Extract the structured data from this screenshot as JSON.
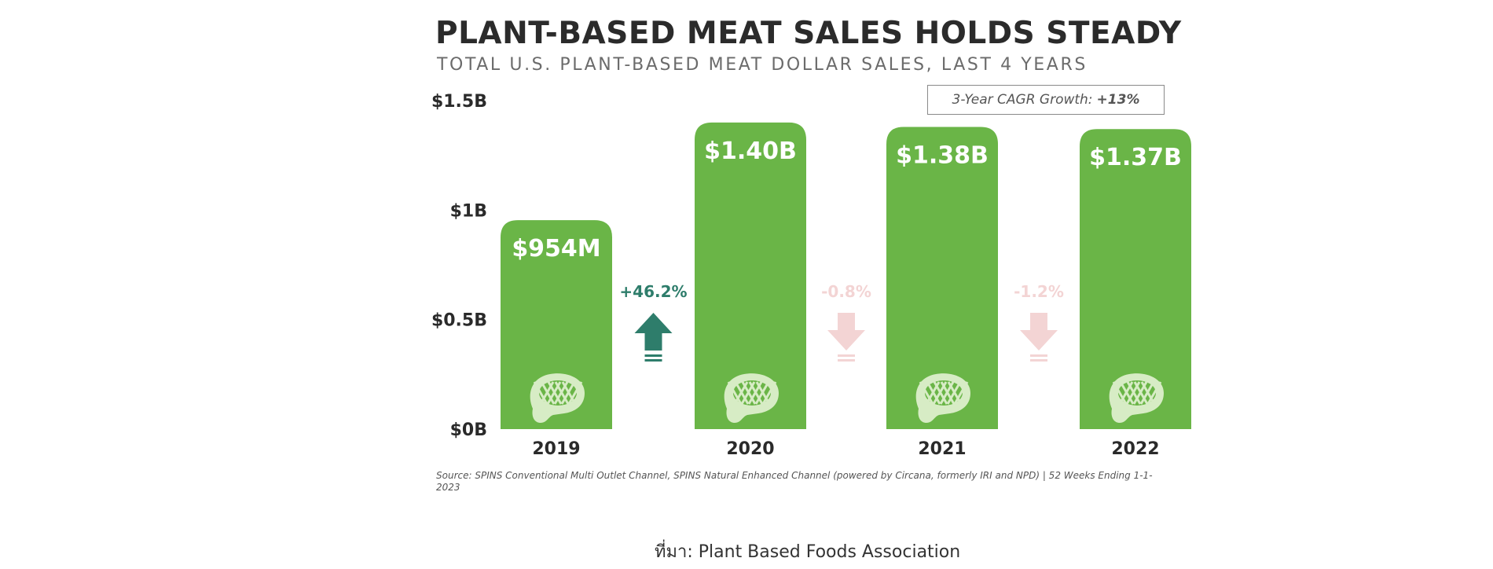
{
  "chart_data": {
    "type": "bar",
    "title": "PLANT-BASED MEAT SALES HOLDS STEADY",
    "subtitle": "TOTAL U.S. PLANT-BASED MEAT DOLLAR SALES, LAST 4 YEARS",
    "categories": [
      "2019",
      "2020",
      "2021",
      "2022"
    ],
    "values": [
      0.954,
      1.4,
      1.38,
      1.37
    ],
    "value_labels": [
      "$954M",
      "$1.40B",
      "$1.38B",
      "$1.37B"
    ],
    "units": "billions USD",
    "ylim": [
      0,
      1.5
    ],
    "yticks": [
      0,
      0.5,
      1,
      1.5
    ],
    "ytick_labels": [
      "$0B",
      "$0.5B",
      "$1B",
      "$1.5B"
    ],
    "changes": [
      {
        "label": "+46.2%",
        "direction": "up",
        "color": "#2e7d6b"
      },
      {
        "label": "-0.8%",
        "direction": "down",
        "color": "#f3d4d4"
      },
      {
        "label": "-1.2%",
        "direction": "down",
        "color": "#f3d4d4"
      }
    ],
    "bar_color": "#6ab547",
    "icon": "steak-icon",
    "grid": false,
    "annotation": {
      "label": "3-Year CAGR Growth:",
      "value": "+13%"
    }
  },
  "source_note": "Source: SPINS Conventional Multi Outlet Channel, SPINS Natural Enhanced Channel (powered by Circana, formerly IRI and NPD) | 52 Weeks Ending 1-1-2023",
  "caption": "ที่มา: Plant Based Foods Association"
}
